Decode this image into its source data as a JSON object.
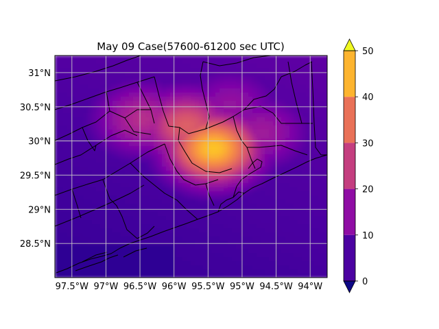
{
  "chart_data": {
    "type": "heatmap",
    "title": "May 09 Case(57600-61200 sec UTC)",
    "xlabel": "",
    "ylabel": "",
    "xlim": [
      -97.75,
      -93.75
    ],
    "ylim": [
      28.0,
      31.25
    ],
    "x_ticks": [
      {
        "value": -97.5,
        "label": "97.5°W"
      },
      {
        "value": -97.0,
        "label": "97°W"
      },
      {
        "value": -96.5,
        "label": "96.5°W"
      },
      {
        "value": -96.0,
        "label": "96°W"
      },
      {
        "value": -95.5,
        "label": "95.5°W"
      },
      {
        "value": -95.0,
        "label": "95°W"
      },
      {
        "value": -94.5,
        "label": "94.5°W"
      },
      {
        "value": -94.0,
        "label": "94°W"
      }
    ],
    "y_ticks": [
      {
        "value": 28.5,
        "label": "28.5°N"
      },
      {
        "value": 29.0,
        "label": "29°N"
      },
      {
        "value": 29.5,
        "label": "29.5°N"
      },
      {
        "value": 30.0,
        "label": "30°N"
      },
      {
        "value": 30.5,
        "label": "30.5°N"
      },
      {
        "value": 31.0,
        "label": "31°N"
      }
    ],
    "grid": true,
    "colorbar": {
      "levels": [
        0,
        10,
        20,
        30,
        40,
        50
      ],
      "tick_labels": [
        "0",
        "10",
        "20",
        "30",
        "40",
        "50"
      ],
      "colors": [
        "#4c02a1",
        "#8f0da4",
        "#c43e7f",
        "#e97158",
        "#fdb42f"
      ],
      "under_color": "#0d0887",
      "over_color": "#f0f921",
      "extend": "both"
    },
    "field_hotspots": [
      {
        "lon": -95.45,
        "lat": 29.92,
        "peak": 47
      },
      {
        "lon": -95.85,
        "lat": 30.25,
        "peak": 34
      },
      {
        "lon": -96.5,
        "lat": 30.35,
        "peak": 26
      },
      {
        "lon": -94.75,
        "lat": 30.15,
        "peak": 22
      },
      {
        "lon": -95.2,
        "lat": 30.55,
        "peak": 20
      }
    ],
    "field_background": 5
  }
}
